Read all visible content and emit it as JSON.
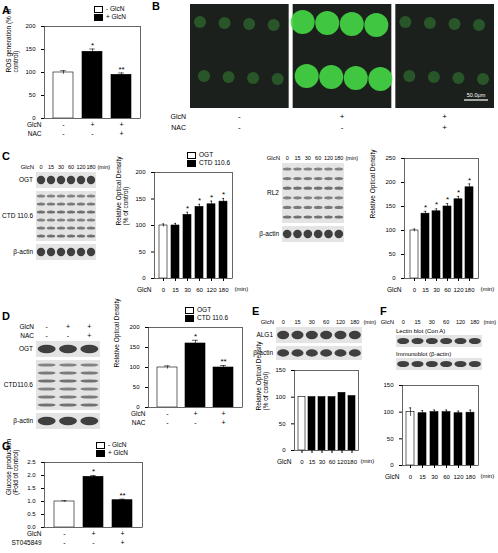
{
  "chart_data": [
    {
      "panel": "A",
      "type": "bar",
      "ylabel": "ROS generation (% of control)",
      "categories": [
        null,
        null,
        null
      ],
      "condition_rows": [
        {
          "label": "GlcN",
          "values": [
            "-",
            "+",
            "+"
          ]
        },
        {
          "label": "NAC",
          "values": [
            "-",
            "-",
            "+"
          ]
        }
      ],
      "series": [
        {
          "name": "- GlcN",
          "color": "#ffffff",
          "values": [
            100,
            null,
            null
          ],
          "errors": [
            4,
            null,
            null
          ]
        },
        {
          "name": "+ GlcN",
          "color": "#000000",
          "values": [
            null,
            145,
            95
          ],
          "errors": [
            null,
            6,
            4
          ],
          "annotations": [
            null,
            "*",
            "**"
          ]
        }
      ],
      "ylim": [
        0,
        200
      ],
      "yticks": [
        0,
        50,
        100,
        150,
        200
      ],
      "legend": "top-right"
    },
    {
      "type": "bar",
      "ylabel": "Relative Optical Density (% of control)",
      "categories": [
        0,
        15,
        30,
        60,
        120,
        180
      ],
      "x_prefix": "GlcN",
      "xlabel": "(min)",
      "series": [
        {
          "name": "OGT",
          "color": "#ffffff",
          "values": [
            100,
            null,
            null,
            null,
            null,
            null
          ],
          "errors": [
            3,
            null,
            null,
            null,
            null,
            null
          ]
        },
        {
          "name": "CTD 110.6",
          "color": "#000000",
          "values": [
            null,
            100,
            120,
            135,
            140,
            145
          ],
          "errors": [
            null,
            4,
            5,
            5,
            6,
            6
          ],
          "annotations": [
            null,
            null,
            "*",
            "*",
            "*",
            "*"
          ]
        }
      ],
      "ylim": [
        0,
        200
      ],
      "yticks": [
        0,
        50,
        100,
        150,
        200
      ],
      "legend": "top-right"
    },
    {
      "type": "bar",
      "ylabel": "Relative Optical Density",
      "categories": [
        0,
        15,
        30,
        60,
        120,
        180
      ],
      "x_prefix": "GlcN",
      "xlabel": "(min)",
      "values": [
        100,
        135,
        140,
        150,
        165,
        190
      ],
      "colors": [
        "#ffffff",
        "#000000",
        "#000000",
        "#000000",
        "#000000",
        "#000000"
      ],
      "errors": [
        3,
        5,
        5,
        6,
        6,
        7
      ],
      "annotations": [
        null,
        "*",
        "*",
        "*",
        "*",
        "*"
      ],
      "ylim": [
        0,
        250
      ],
      "yticks": [
        0,
        50,
        100,
        150,
        200,
        250
      ]
    },
    {
      "type": "bar",
      "ylabel": "Relative Optical Density",
      "categories": [
        null,
        null,
        null
      ],
      "condition_rows": [
        {
          "label": "GlcN",
          "values": [
            "-",
            "+",
            "+"
          ]
        },
        {
          "label": "NAC",
          "values": [
            "-",
            "-",
            "+"
          ]
        }
      ],
      "series": [
        {
          "name": "OGT",
          "color": "#ffffff",
          "values": [
            100,
            null,
            null
          ],
          "errors": [
            4,
            null,
            null
          ]
        },
        {
          "name": "CTD 110.6",
          "color": "#000000",
          "values": [
            null,
            160,
            100
          ],
          "errors": [
            null,
            8,
            5
          ],
          "annotations": [
            null,
            "*",
            "**"
          ]
        }
      ],
      "ylim": [
        0,
        200
      ],
      "yticks": [
        0,
        50,
        100,
        150,
        200
      ],
      "legend": "top-right"
    },
    {
      "type": "bar",
      "ylabel": "Relative Optical Density (% of control)",
      "categories": [
        0,
        15,
        30,
        60,
        120,
        180
      ],
      "x_prefix": "GlcN",
      "xlabel": "(min)",
      "values": [
        100,
        100,
        100,
        100,
        108,
        102
      ],
      "colors": [
        "#ffffff",
        "#000000",
        "#000000",
        "#000000",
        "#000000",
        "#000000"
      ],
      "ylim": [
        0,
        150
      ],
      "yticks": [
        0,
        50,
        100,
        150
      ]
    },
    {
      "type": "bar",
      "categories": [
        0,
        15,
        30,
        60,
        120,
        180
      ],
      "x_prefix": "GlcN",
      "xlabel": "(min)",
      "values": [
        100,
        98,
        100,
        100,
        98,
        99
      ],
      "colors": [
        "#ffffff",
        "#000000",
        "#000000",
        "#000000",
        "#000000",
        "#000000"
      ],
      "errors": [
        8,
        5,
        4,
        4,
        4,
        5
      ],
      "ylim": [
        0,
        150
      ],
      "yticks": [
        0,
        50,
        100,
        150
      ]
    },
    {
      "panel": "G",
      "type": "bar",
      "ylabel": "Glucose production (Fold of control)",
      "categories": [
        null,
        null,
        null
      ],
      "condition_rows": [
        {
          "label": "GlcN",
          "values": [
            "-",
            "+",
            "+"
          ]
        },
        {
          "label": "ST045849",
          "values": [
            "-",
            "-",
            "+"
          ]
        }
      ],
      "series": [
        {
          "name": "- GlcN",
          "color": "#ffffff",
          "values": [
            1.0,
            null,
            null
          ],
          "errors": [
            0.03,
            null,
            null
          ]
        },
        {
          "name": "+ GlcN",
          "color": "#000000",
          "values": [
            null,
            1.95,
            1.05
          ],
          "errors": [
            null,
            0.05,
            0.04
          ],
          "annotations": [
            null,
            "*",
            "**"
          ]
        }
      ],
      "ylim": [
        0,
        2.5
      ],
      "yticks": [
        {
          "value": 0,
          "label": "0.0"
        },
        {
          "value": 0.5,
          "label": "0.5"
        },
        {
          "value": 1,
          "label": "1.0"
        },
        {
          "value": 1.5,
          "label": "1.5"
        },
        {
          "value": 2,
          "label": "2.0"
        },
        {
          "value": 2.5,
          "label": "2.5"
        }
      ],
      "legend": "top-right"
    }
  ],
  "blots": [
    {
      "panel": "C",
      "rows": [
        "OGT",
        "CTD 110.6",
        "β-actin"
      ],
      "lanes": [
        0,
        15,
        30,
        60,
        120,
        180
      ],
      "lane_prefix": "GlcN",
      "lane_suffix": "(min)"
    },
    {
      "rows": [
        "RL2",
        "β-actin"
      ],
      "lanes": [
        0,
        15,
        30,
        60,
        120,
        180
      ],
      "lane_prefix": "GlcN",
      "lane_suffix": "(min)"
    },
    {
      "panel": "D",
      "rows": [
        "OGT",
        "CTD110.6",
        "β-actin"
      ],
      "condition_rows": [
        {
          "label": "GlcN",
          "values": [
            "-",
            "+",
            "+"
          ]
        },
        {
          "label": "NAC",
          "values": [
            "-",
            "-",
            "+"
          ]
        }
      ]
    },
    {
      "panel": "E",
      "rows": [
        "ALG1",
        "β-actin"
      ],
      "lanes": [
        0,
        15,
        30,
        60,
        120,
        180
      ],
      "lane_prefix": "GlcN",
      "lane_suffix": "(min)"
    },
    {
      "panel": "F",
      "rows": [
        "Lectin blot (Con A)",
        "Immunoblot (β-actin)"
      ],
      "lanes": [
        0,
        15,
        30,
        60,
        120,
        180
      ],
      "lane_prefix": "GlcN",
      "lane_suffix": "(min)"
    }
  ],
  "micrographs": {
    "panel": "B",
    "scale_bar": "50.0μm",
    "condition_rows": [
      {
        "label": "GlcN",
        "values": [
          "-",
          "+",
          "+"
        ]
      },
      {
        "label": "NAC",
        "values": [
          "-",
          "-",
          "+"
        ]
      }
    ]
  }
}
